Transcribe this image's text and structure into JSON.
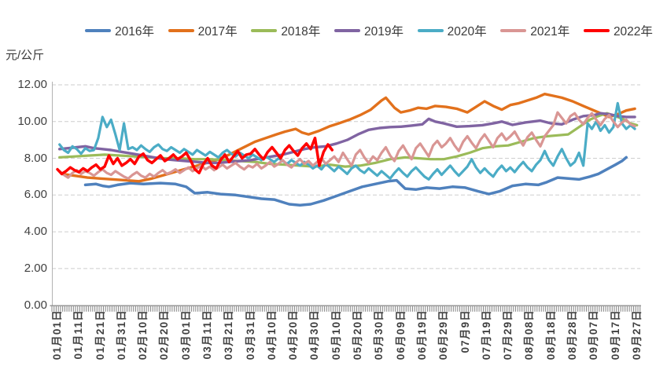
{
  "unit_label": "元/公斤",
  "chart_data": {
    "type": "line",
    "title": "",
    "xlabel": "",
    "ylabel": "元/公斤",
    "ylim": [
      0,
      12
    ],
    "y_tick_labels": [
      "0.00",
      "2.00",
      "4.00",
      "6.00",
      "8.00",
      "10.00",
      "12.00"
    ],
    "grid": "horizontal-dashed",
    "legend_position": "top",
    "x_tick_step_days": 10,
    "x_tick_labels": [
      "01月01日",
      "01月11日",
      "01月21日",
      "01月31日",
      "02月10日",
      "02月20日",
      "03月01日",
      "03月11日",
      "03月21日",
      "03月31日",
      "04月10日",
      "04月20日",
      "04月30日",
      "05月10日",
      "05月20日",
      "05月30日",
      "06月09日",
      "06月19日",
      "06月29日",
      "07月9日",
      "07月19日",
      "07月29日",
      "08月08日",
      "08月18日",
      "08月28日",
      "09月07日",
      "09月17日",
      "09月27日"
    ],
    "series": [
      {
        "name": "2016年",
        "color": "#4F81BD",
        "width": 3.5,
        "points": [
          [
            13,
            6.55
          ],
          [
            18,
            6.6
          ],
          [
            21,
            6.5
          ],
          [
            24,
            6.45
          ],
          [
            28,
            6.55
          ],
          [
            34,
            6.65
          ],
          [
            40,
            6.6
          ],
          [
            48,
            6.65
          ],
          [
            55,
            6.6
          ],
          [
            60,
            6.45
          ],
          [
            64,
            6.1
          ],
          [
            70,
            6.15
          ],
          [
            76,
            6.05
          ],
          [
            83,
            6.0
          ],
          [
            89,
            5.9
          ],
          [
            95,
            5.8
          ],
          [
            101,
            5.75
          ],
          [
            108,
            5.5
          ],
          [
            113,
            5.45
          ],
          [
            118,
            5.5
          ],
          [
            124,
            5.7
          ],
          [
            130,
            5.95
          ],
          [
            136,
            6.2
          ],
          [
            142,
            6.45
          ],
          [
            148,
            6.6
          ],
          [
            154,
            6.75
          ],
          [
            158,
            6.8
          ],
          [
            162,
            6.35
          ],
          [
            167,
            6.3
          ],
          [
            172,
            6.4
          ],
          [
            178,
            6.35
          ],
          [
            184,
            6.45
          ],
          [
            190,
            6.4
          ],
          [
            196,
            6.2
          ],
          [
            201,
            6.05
          ],
          [
            206,
            6.2
          ],
          [
            212,
            6.5
          ],
          [
            218,
            6.6
          ],
          [
            224,
            6.55
          ],
          [
            228,
            6.7
          ],
          [
            233,
            6.95
          ],
          [
            238,
            6.9
          ],
          [
            243,
            6.85
          ],
          [
            248,
            7.0
          ],
          [
            252,
            7.15
          ],
          [
            256,
            7.4
          ],
          [
            260,
            7.65
          ],
          [
            263,
            7.85
          ],
          [
            265,
            8.05
          ]
        ]
      },
      {
        "name": "2017年",
        "color": "#E2711C",
        "width": 3.4,
        "points": [
          [
            2,
            7.15
          ],
          [
            8,
            7.05
          ],
          [
            14,
            6.95
          ],
          [
            20,
            6.9
          ],
          [
            26,
            6.85
          ],
          [
            32,
            6.8
          ],
          [
            38,
            6.75
          ],
          [
            44,
            6.9
          ],
          [
            50,
            7.1
          ],
          [
            56,
            7.3
          ],
          [
            62,
            7.5
          ],
          [
            68,
            7.7
          ],
          [
            74,
            7.9
          ],
          [
            80,
            8.2
          ],
          [
            86,
            8.55
          ],
          [
            92,
            8.9
          ],
          [
            97,
            9.1
          ],
          [
            102,
            9.3
          ],
          [
            106,
            9.45
          ],
          [
            111,
            9.6
          ],
          [
            114,
            9.4
          ],
          [
            117,
            9.3
          ],
          [
            122,
            9.5
          ],
          [
            127,
            9.75
          ],
          [
            131,
            9.9
          ],
          [
            136,
            10.1
          ],
          [
            141,
            10.35
          ],
          [
            146,
            10.65
          ],
          [
            151,
            11.15
          ],
          [
            153,
            11.3
          ],
          [
            157,
            10.75
          ],
          [
            160,
            10.5
          ],
          [
            164,
            10.6
          ],
          [
            168,
            10.75
          ],
          [
            172,
            10.7
          ],
          [
            176,
            10.85
          ],
          [
            181,
            10.8
          ],
          [
            186,
            10.7
          ],
          [
            191,
            10.5
          ],
          [
            195,
            10.8
          ],
          [
            199,
            11.1
          ],
          [
            203,
            10.85
          ],
          [
            207,
            10.65
          ],
          [
            211,
            10.9
          ],
          [
            215,
            11.0
          ],
          [
            219,
            11.15
          ],
          [
            223,
            11.3
          ],
          [
            227,
            11.5
          ],
          [
            231,
            11.4
          ],
          [
            235,
            11.3
          ],
          [
            240,
            11.1
          ],
          [
            245,
            10.85
          ],
          [
            249,
            10.65
          ],
          [
            253,
            10.45
          ],
          [
            257,
            10.25
          ],
          [
            261,
            10.4
          ],
          [
            265,
            10.6
          ],
          [
            269,
            10.7
          ]
        ]
      },
      {
        "name": "2018年",
        "color": "#9BBB59",
        "width": 3.2,
        "points": [
          [
            1,
            8.05
          ],
          [
            8,
            8.1
          ],
          [
            15,
            8.15
          ],
          [
            22,
            8.2
          ],
          [
            29,
            8.15
          ],
          [
            36,
            8.1
          ],
          [
            43,
            8.05
          ],
          [
            50,
            8.0
          ],
          [
            57,
            8.0
          ],
          [
            64,
            7.95
          ],
          [
            71,
            7.95
          ],
          [
            78,
            7.9
          ],
          [
            85,
            7.85
          ],
          [
            92,
            7.8
          ],
          [
            99,
            7.7
          ],
          [
            106,
            7.65
          ],
          [
            113,
            7.6
          ],
          [
            120,
            7.55
          ],
          [
            127,
            7.65
          ],
          [
            134,
            7.55
          ],
          [
            141,
            7.6
          ],
          [
            148,
            7.75
          ],
          [
            155,
            7.95
          ],
          [
            162,
            8.05
          ],
          [
            168,
            8.0
          ],
          [
            174,
            7.95
          ],
          [
            180,
            7.95
          ],
          [
            186,
            8.1
          ],
          [
            192,
            8.3
          ],
          [
            198,
            8.55
          ],
          [
            204,
            8.65
          ],
          [
            210,
            8.7
          ],
          [
            216,
            8.9
          ],
          [
            222,
            9.1
          ],
          [
            228,
            9.2
          ],
          [
            233,
            9.25
          ],
          [
            238,
            9.3
          ],
          [
            243,
            9.7
          ],
          [
            248,
            10.1
          ],
          [
            252,
            10.3
          ],
          [
            256,
            10.45
          ],
          [
            260,
            10.3
          ],
          [
            264,
            10.1
          ],
          [
            267,
            9.9
          ],
          [
            270,
            9.8
          ]
        ]
      },
      {
        "name": "2019年",
        "color": "#8064A2",
        "width": 3.4,
        "points": [
          [
            1,
            8.5
          ],
          [
            5,
            8.55
          ],
          [
            9,
            8.6
          ],
          [
            13,
            8.65
          ],
          [
            17,
            8.55
          ],
          [
            21,
            8.5
          ],
          [
            25,
            8.45
          ],
          [
            30,
            8.35
          ],
          [
            35,
            8.25
          ],
          [
            40,
            8.15
          ],
          [
            45,
            8.05
          ],
          [
            50,
            7.95
          ],
          [
            55,
            7.9
          ],
          [
            60,
            7.85
          ],
          [
            65,
            7.8
          ],
          [
            70,
            7.75
          ],
          [
            75,
            7.75
          ],
          [
            80,
            7.8
          ],
          [
            85,
            7.85
          ],
          [
            90,
            7.9
          ],
          [
            95,
            8.0
          ],
          [
            100,
            8.1
          ],
          [
            105,
            8.2
          ],
          [
            110,
            8.35
          ],
          [
            115,
            8.5
          ],
          [
            120,
            8.6
          ],
          [
            125,
            8.65
          ],
          [
            130,
            8.8
          ],
          [
            135,
            9.0
          ],
          [
            140,
            9.3
          ],
          [
            145,
            9.55
          ],
          [
            150,
            9.65
          ],
          [
            155,
            9.7
          ],
          [
            160,
            9.72
          ],
          [
            165,
            9.78
          ],
          [
            170,
            9.85
          ],
          [
            173,
            10.15
          ],
          [
            176,
            10.0
          ],
          [
            180,
            9.9
          ],
          [
            186,
            9.72
          ],
          [
            192,
            9.75
          ],
          [
            198,
            9.8
          ],
          [
            203,
            9.9
          ],
          [
            207,
            10.0
          ],
          [
            212,
            9.82
          ],
          [
            218,
            9.95
          ],
          [
            225,
            10.05
          ],
          [
            230,
            9.9
          ],
          [
            235,
            9.85
          ],
          [
            240,
            10.1
          ],
          [
            245,
            10.3
          ],
          [
            250,
            10.35
          ],
          [
            253,
            10.45
          ],
          [
            257,
            10.4
          ],
          [
            261,
            10.3
          ],
          [
            265,
            10.25
          ],
          [
            269,
            10.25
          ]
        ]
      },
      {
        "name": "2020年",
        "color": "#4BACC6",
        "width": 3.2,
        "start_day": 1,
        "step": 2,
        "values": [
          8.75,
          8.45,
          8.3,
          8.65,
          8.5,
          8.25,
          8.55,
          8.4,
          8.45,
          9.1,
          10.25,
          9.7,
          10.1,
          9.3,
          8.45,
          9.9,
          8.5,
          8.6,
          8.45,
          8.7,
          8.5,
          8.35,
          8.6,
          8.75,
          8.5,
          8.4,
          8.6,
          8.45,
          8.3,
          8.5,
          8.35,
          8.2,
          8.45,
          8.3,
          8.15,
          8.35,
          8.2,
          8.05,
          8.3,
          8.45,
          8.25,
          8.1,
          8.3,
          8.15,
          8.0,
          8.2,
          8.05,
          7.9,
          8.1,
          7.95,
          7.8,
          8.0,
          7.85,
          7.7,
          7.9,
          7.75,
          7.6,
          7.8,
          7.65,
          7.45,
          7.6,
          7.4,
          7.7,
          7.5,
          7.3,
          7.55,
          7.35,
          7.15,
          7.45,
          7.6,
          7.35,
          7.2,
          7.45,
          7.25,
          7.05,
          7.3,
          7.1,
          6.9,
          7.2,
          7.45,
          7.2,
          7.0,
          7.3,
          7.5,
          7.25,
          7.0,
          6.85,
          7.15,
          7.4,
          7.1,
          7.35,
          7.6,
          7.3,
          7.05,
          7.3,
          7.55,
          7.95,
          7.5,
          7.2,
          7.45,
          7.2,
          7.0,
          7.35,
          7.6,
          7.3,
          7.5,
          7.25,
          7.55,
          7.8,
          7.5,
          7.3,
          7.65,
          7.9,
          8.4,
          7.9,
          7.6,
          8.1,
          8.5,
          8.0,
          7.6,
          7.8,
          8.3,
          7.6,
          9.9,
          9.6,
          10.0,
          9.5,
          9.8,
          9.4,
          9.7,
          11.0,
          9.9,
          9.6,
          9.8,
          9.6
        ]
      },
      {
        "name": "2021年",
        "color": "#D99694",
        "width": 3.2,
        "start_day": 1,
        "step": 2,
        "values": [
          7.3,
          7.1,
          6.95,
          7.2,
          7.35,
          7.15,
          7.3,
          7.2,
          7.05,
          7.25,
          7.4,
          7.2,
          7.1,
          7.3,
          7.15,
          7.0,
          6.9,
          7.1,
          7.25,
          7.05,
          6.95,
          7.15,
          7.0,
          7.2,
          7.35,
          7.15,
          7.25,
          7.4,
          7.2,
          7.35,
          7.5,
          7.3,
          7.45,
          7.6,
          7.4,
          7.55,
          7.35,
          7.5,
          7.65,
          7.45,
          7.6,
          7.75,
          7.55,
          7.4,
          7.6,
          7.5,
          7.7,
          7.45,
          7.6,
          7.8,
          7.55,
          7.7,
          7.9,
          7.65,
          7.5,
          7.75,
          7.95,
          7.7,
          7.85,
          7.6,
          7.8,
          8.0,
          7.7,
          7.9,
          8.1,
          7.8,
          8.3,
          7.95,
          7.6,
          8.2,
          8.45,
          8.05,
          7.75,
          8.1,
          7.9,
          8.3,
          8.6,
          8.15,
          7.85,
          8.4,
          8.7,
          8.3,
          7.95,
          8.55,
          8.8,
          8.45,
          8.1,
          8.7,
          8.95,
          8.6,
          8.8,
          9.1,
          8.7,
          8.4,
          8.9,
          9.2,
          8.85,
          8.55,
          9.0,
          9.3,
          8.95,
          8.6,
          9.1,
          9.35,
          9.0,
          9.2,
          9.45,
          9.05,
          8.7,
          9.15,
          9.4,
          9.0,
          8.65,
          9.2,
          9.5,
          9.8,
          10.5,
          10.2,
          9.9,
          10.3,
          10.45,
          10.1,
          9.85,
          10.2,
          10.45,
          10.1,
          9.8,
          10.15,
          10.35,
          10.0,
          9.7,
          9.95,
          10.1,
          9.85,
          9.75
        ]
      },
      {
        "name": "2022年",
        "color": "#FF0000",
        "width": 3.5,
        "start_day": 0,
        "step": 2,
        "values": [
          7.4,
          7.15,
          7.3,
          7.5,
          7.35,
          7.25,
          7.45,
          7.3,
          7.5,
          7.65,
          7.4,
          7.55,
          8.15,
          7.7,
          8.0,
          7.6,
          7.75,
          7.95,
          7.7,
          8.1,
          8.25,
          7.9,
          7.75,
          7.95,
          8.15,
          7.85,
          8.0,
          8.2,
          7.95,
          8.1,
          8.3,
          7.9,
          7.4,
          7.2,
          7.7,
          8.0,
          7.6,
          7.45,
          7.9,
          8.2,
          7.8,
          8.1,
          8.4,
          8.0,
          8.2,
          8.25,
          8.5,
          8.2,
          7.95,
          8.35,
          8.6,
          8.3,
          8.0,
          8.45,
          8.7,
          8.4,
          8.15,
          8.55,
          8.8,
          8.5,
          9.1,
          7.6,
          8.35,
          8.75,
          8.45
        ]
      }
    ]
  }
}
